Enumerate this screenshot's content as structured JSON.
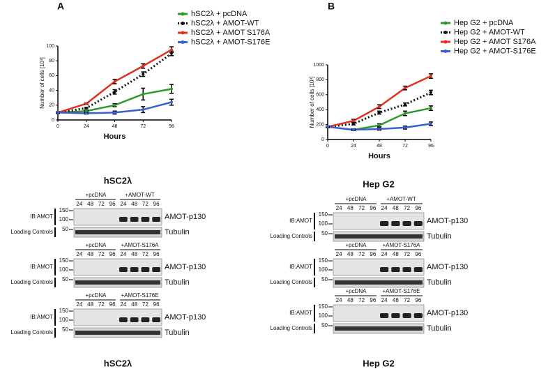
{
  "chart_data": [
    {
      "type": "line",
      "panel": "A",
      "x_label": "Hours",
      "y_label": "Number of cells [10³]",
      "x": [
        0,
        24,
        48,
        72,
        96
      ],
      "xlim": [
        0,
        96
      ],
      "xticks": [
        0,
        24,
        48,
        72,
        96
      ],
      "ylim": [
        0,
        100
      ],
      "yticks": [
        0,
        20,
        40,
        60,
        80,
        100
      ],
      "series": [
        {
          "name": "hSC2λ + pcDNA",
          "color": "#2e9a2e",
          "linestyle": "solid",
          "values": [
            10,
            12,
            20,
            35,
            42
          ],
          "errors": [
            1,
            1,
            2,
            8,
            6
          ]
        },
        {
          "name": "hSC2λ + AMOT-WT",
          "color": "#111111",
          "linestyle": "dotted",
          "values": [
            10,
            16,
            38,
            62,
            90
          ],
          "errors": [
            1,
            1,
            3,
            3,
            3
          ]
        },
        {
          "name": "hSC2λ + AMOT S176A",
          "color": "#e0301e",
          "linestyle": "solid",
          "values": [
            10,
            22,
            52,
            73,
            95
          ],
          "errors": [
            1,
            1,
            3,
            3,
            4
          ]
        },
        {
          "name": "hSC2λ + AMOT-S176E",
          "color": "#3a5fd0",
          "linestyle": "solid",
          "values": [
            10,
            9,
            10,
            14,
            24
          ],
          "errors": [
            1,
            1,
            2,
            4,
            4
          ]
        }
      ]
    },
    {
      "type": "line",
      "panel": "B",
      "x_label": "Hours",
      "y_label": "Number of cells [10³]",
      "x": [
        0,
        24,
        48,
        72,
        96
      ],
      "xlim": [
        0,
        96
      ],
      "xticks": [
        0,
        24,
        48,
        72,
        96
      ],
      "ylim": [
        0,
        1000
      ],
      "yticks": [
        0,
        200,
        400,
        600,
        800,
        1000
      ],
      "series": [
        {
          "name": "Hep G2 + pcDNA",
          "color": "#2e9a2e",
          "linestyle": "solid",
          "values": [
            170,
            130,
            190,
            350,
            420
          ],
          "errors": [
            10,
            10,
            20,
            30,
            30
          ]
        },
        {
          "name": "Hep G2 + AMOT-WT",
          "color": "#111111",
          "linestyle": "dotted",
          "values": [
            170,
            210,
            360,
            470,
            630
          ],
          "errors": [
            10,
            15,
            20,
            20,
            30
          ]
        },
        {
          "name": "Hep G2 + AMOT S176A",
          "color": "#e0301e",
          "linestyle": "solid",
          "values": [
            170,
            250,
            440,
            690,
            850
          ],
          "errors": [
            10,
            20,
            25,
            25,
            30
          ]
        },
        {
          "name": "Hep G2 + AMOT-S176E",
          "color": "#3a5fd0",
          "linestyle": "solid",
          "values": [
            170,
            130,
            140,
            160,
            210
          ],
          "errors": [
            10,
            10,
            15,
            20,
            25
          ]
        }
      ]
    }
  ],
  "blots": [
    {
      "title": "hSC2λ",
      "caption": "hSC2λ",
      "groups": [
        {
          "control": "+pcDNA",
          "treatment": "+AMOT-WT",
          "lanes": [
            "24",
            "48",
            "72",
            "96",
            "24",
            "48",
            "72",
            "96"
          ],
          "ib": "IB:AMOT",
          "loading": "Loading Controls",
          "markers": [
            "150",
            "100",
            "50"
          ],
          "band": "AMOT-p130",
          "control_band": "Tubulin"
        },
        {
          "control": "+pcDNA",
          "treatment": "+AMOT-S176A",
          "lanes": [
            "24",
            "48",
            "72",
            "96",
            "24",
            "48",
            "72",
            "96"
          ],
          "ib": "IB:AMOT",
          "loading": "Loading Controls",
          "markers": [
            "150",
            "100",
            "50"
          ],
          "band": "AMOT-p130",
          "control_band": "Tubulin"
        },
        {
          "control": "+pcDNA",
          "treatment": "+AMOT-S176E",
          "lanes": [
            "24",
            "48",
            "72",
            "96",
            "24",
            "48",
            "72",
            "96"
          ],
          "ib": "IB:AMOT",
          "loading": "Loading Controls",
          "markers": [
            "150",
            "100",
            "50"
          ],
          "band": "AMOT-p130",
          "control_band": "Tubulin"
        }
      ]
    },
    {
      "title": "Hep G2",
      "caption": "Hep G2",
      "groups": [
        {
          "control": "+pcDNA",
          "treatment": "+AMOT-WT",
          "lanes": [
            "24",
            "48",
            "72",
            "96",
            "24",
            "48",
            "72",
            "96"
          ],
          "ib": "IB:AMOT",
          "loading": "Loading Controls",
          "markers": [
            "150",
            "100",
            "50"
          ],
          "band": "AMOT-p130",
          "control_band": "Tubulin"
        },
        {
          "control": "+pcDNA",
          "treatment": "+AMOT-S176A",
          "lanes": [
            "24",
            "48",
            "72",
            "96",
            "24",
            "48",
            "72",
            "96"
          ],
          "ib": "IB:AMOT",
          "loading": "Loading Controls",
          "markers": [
            "150",
            "100",
            "50"
          ],
          "band": "AMOT-p130",
          "control_band": "Tubulin"
        },
        {
          "control": "+pcDNA",
          "treatment": "+AMOT-S176E",
          "lanes": [
            "24",
            "48",
            "72",
            "96",
            "24",
            "48",
            "72",
            "96"
          ],
          "ib": "IB:AMOT",
          "loading": "Loading Controls",
          "markers": [
            "150",
            "100",
            "50"
          ],
          "band": "AMOT-p130",
          "control_band": "Tubulin"
        }
      ]
    }
  ]
}
